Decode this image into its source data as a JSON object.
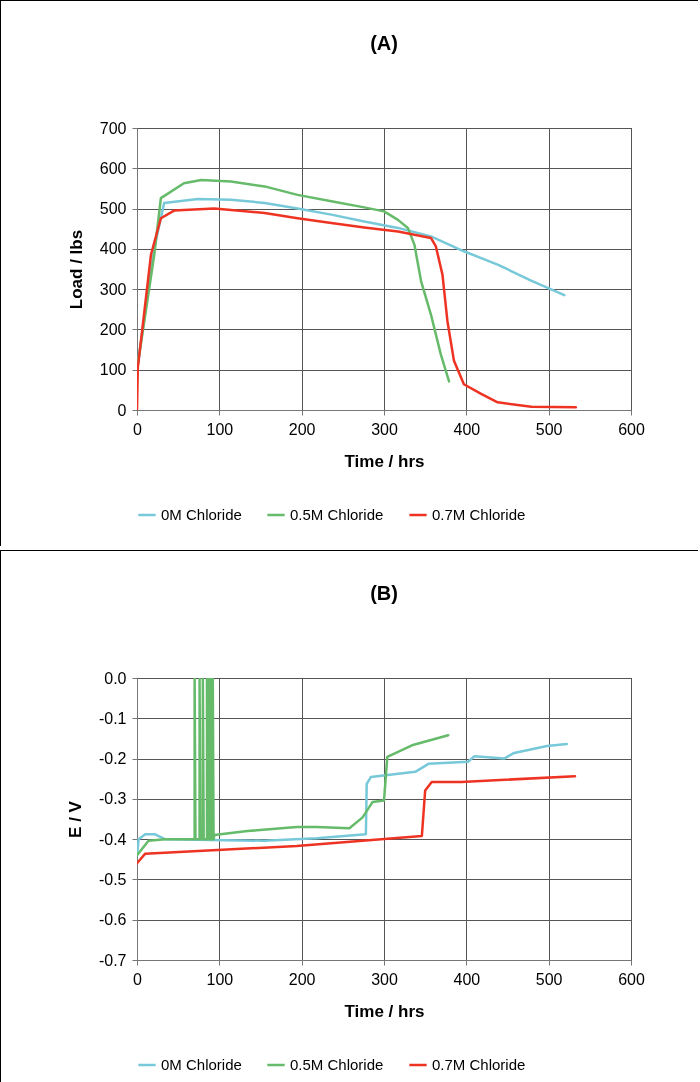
{
  "chart_data": [
    {
      "type": "line",
      "title": "(A)",
      "xlabel": "Time / hrs",
      "ylabel": "Load / lbs",
      "xlim": [
        0,
        600
      ],
      "xticks": [
        0,
        100,
        200,
        300,
        400,
        500,
        600
      ],
      "ylim": [
        0,
        700
      ],
      "yticks": [
        0,
        100,
        200,
        300,
        400,
        500,
        600,
        700
      ],
      "grid": true,
      "legend": "bottom",
      "series": [
        {
          "name": "0M Chloride",
          "color": "#77c9d9",
          "x": [
            0,
            21,
            33,
            74,
            114,
            155,
            195,
            236,
            276,
            317,
            357,
            397,
            438,
            478,
            519
          ],
          "values": [
            100,
            402,
            514,
            524,
            522,
            514,
            500,
            485,
            468,
            452,
            431,
            394,
            361,
            322,
            285
          ]
        },
        {
          "name": "0.5M Chloride",
          "color": "#66bb6a",
          "x": [
            0,
            21,
            29,
            57,
            78,
            114,
            155,
            195,
            236,
            276,
            300,
            317,
            329,
            337,
            345,
            357,
            369,
            379
          ],
          "values": [
            100,
            386,
            526,
            563,
            571,
            567,
            555,
            534,
            518,
            503,
            493,
            472,
            452,
            410,
            320,
            237,
            138,
            71
          ]
        },
        {
          "name": "0.7M Chloride",
          "color": "#ee3322",
          "x": [
            0,
            1,
            17,
            29,
            45,
            94,
            155,
            195,
            236,
            276,
            317,
            357,
            363,
            371,
            377,
            385,
            397,
            418,
            438,
            479,
            533
          ],
          "values": [
            0,
            105,
            386,
            476,
            495,
            500,
            489,
            476,
            464,
            453,
            443,
            427,
            406,
            336,
            221,
            122,
            64,
            40,
            19,
            8,
            7
          ]
        }
      ]
    },
    {
      "type": "line",
      "title": "(B)",
      "xlabel": "Time / hrs",
      "ylabel": "E / V",
      "xlim": [
        0,
        600
      ],
      "xticks": [
        0,
        100,
        200,
        300,
        400,
        500,
        600
      ],
      "ylim": [
        -0.7,
        0
      ],
      "yticks": [
        {
          "value": 0,
          "label": "0.0"
        },
        -0.1,
        -0.2,
        -0.3,
        -0.4,
        -0.5,
        -0.6,
        -0.7
      ],
      "grid": true,
      "legend": "bottom",
      "series": [
        {
          "name": "0M Chloride",
          "color": "#77c9d9",
          "x": [
            0,
            2,
            10,
            22,
            34,
            154,
            218,
            278,
            279,
            284,
            338,
            354,
            402,
            410,
            446,
            458,
            498,
            522
          ],
          "values": [
            -0.44,
            -0.4,
            -0.388,
            -0.388,
            -0.4,
            -0.404,
            -0.398,
            -0.388,
            -0.263,
            -0.246,
            -0.233,
            -0.213,
            -0.208,
            -0.194,
            -0.2,
            -0.186,
            -0.169,
            -0.164
          ]
        },
        {
          "name": "0.5M Chloride",
          "color": "#66bb6a",
          "x": [
            0,
            14,
            34,
            70,
            70,
            71,
            76,
            76,
            77,
            80,
            80,
            81,
            85,
            85,
            86,
            88,
            88,
            89,
            90,
            90,
            91,
            92,
            92,
            93,
            94,
            134,
            194,
            218,
            258,
            274,
            286,
            300,
            304,
            334,
            378
          ],
          "values": [
            -0.44,
            -0.404,
            -0.4,
            -0.4,
            0,
            -0.4,
            -0.4,
            0,
            -0.4,
            -0.4,
            0,
            -0.4,
            -0.4,
            0,
            -0.4,
            -0.4,
            0,
            -0.4,
            -0.4,
            0,
            -0.4,
            -0.4,
            0,
            -0.4,
            -0.39,
            -0.38,
            -0.37,
            -0.37,
            -0.373,
            -0.346,
            -0.308,
            -0.304,
            -0.196,
            -0.167,
            -0.142
          ]
        },
        {
          "name": "0.7M Chloride",
          "color": "#ee3322",
          "x": [
            0,
            10,
            194,
            346,
            350,
            358,
            394,
            532
          ],
          "values": [
            -0.46,
            -0.436,
            -0.417,
            -0.392,
            -0.279,
            -0.258,
            -0.258,
            -0.244
          ]
        }
      ]
    }
  ]
}
